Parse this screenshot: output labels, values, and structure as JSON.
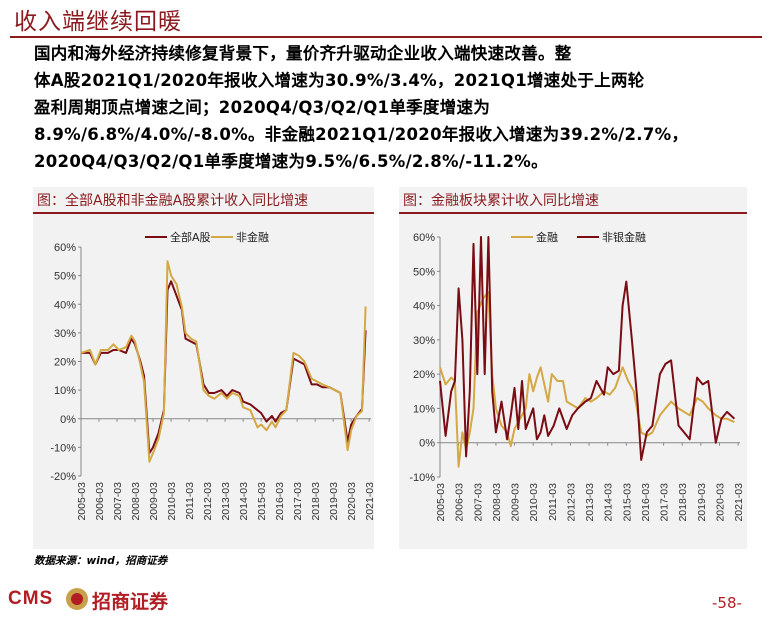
{
  "slide": {
    "title": "收入端继续回暖",
    "paragraph_lines": [
      "国内和海外经济持续修复背景下，量价齐升驱动企业收入端快速改善。整",
      "体A股2021Q1/2020年报收入增速为30.9%/3.4%，2021Q1增速处于上两轮",
      "盈利周期顶点增速之间；2020Q4/Q3/Q2/Q1单季度增速为",
      "8.9%/6.8%/4.0%/-8.0%。非金融2021Q1/2020年报收入增速为39.2%/2.7%，",
      "2020Q4/Q3/Q2/Q1单季度增速为9.5%/6.5%/2.8%/-11.2%。"
    ],
    "source": "数据来源：wind，招商证券",
    "page_number": "-58-",
    "logo": {
      "left": "CMS",
      "right": "招商证券"
    },
    "colors": {
      "accent": "#8b1a1f",
      "series_dark": "#7a0c14",
      "series_gold": "#d4a843",
      "panel_bg": "#f2f2f2"
    }
  },
  "chart_data": [
    {
      "type": "line",
      "title": "图：全部A股和非金融A股累计收入同比增速",
      "legend_position": "top-center",
      "x_tick_labels": [
        "2005-03",
        "2006-03",
        "2007-03",
        "2008-03",
        "2009-03",
        "2010-03",
        "2011-03",
        "2012-03",
        "2013-03",
        "2014-03",
        "2015-03",
        "2016-03",
        "2017-03",
        "2018-03",
        "2019-03",
        "2020-03",
        "2021-03"
      ],
      "y_tick_labels": [
        "-20%",
        "-10%",
        "0%",
        "10%",
        "20%",
        "30%",
        "40%",
        "50%",
        "60%"
      ],
      "ylim": [
        -20,
        60
      ],
      "xlim": [
        2005.2,
        2021.3
      ],
      "grid": false,
      "series": [
        {
          "name": "全部A股",
          "color": "#7a0c14",
          "points": [
            [
              2005.2,
              23
            ],
            [
              2005.7,
              23
            ],
            [
              2006.0,
              19
            ],
            [
              2006.3,
              23
            ],
            [
              2006.7,
              23
            ],
            [
              2007.0,
              24
            ],
            [
              2007.3,
              24
            ],
            [
              2007.7,
              23
            ],
            [
              2008.0,
              28
            ],
            [
              2008.2,
              26
            ],
            [
              2008.5,
              20
            ],
            [
              2008.7,
              15
            ],
            [
              2009.0,
              -12
            ],
            [
              2009.2,
              -10
            ],
            [
              2009.5,
              -5
            ],
            [
              2009.8,
              3
            ],
            [
              2010.0,
              45
            ],
            [
              2010.2,
              48
            ],
            [
              2010.5,
              43
            ],
            [
              2010.8,
              38
            ],
            [
              2011.0,
              28
            ],
            [
              2011.3,
              27
            ],
            [
              2011.6,
              26
            ],
            [
              2012.0,
              12
            ],
            [
              2012.3,
              9
            ],
            [
              2012.6,
              9
            ],
            [
              2013.0,
              10
            ],
            [
              2013.3,
              8
            ],
            [
              2013.6,
              10
            ],
            [
              2014.0,
              9
            ],
            [
              2014.2,
              6
            ],
            [
              2014.6,
              5
            ],
            [
              2015.0,
              3
            ],
            [
              2015.2,
              2
            ],
            [
              2015.5,
              -1
            ],
            [
              2015.8,
              1
            ],
            [
              2016.0,
              -1
            ],
            [
              2016.3,
              2
            ],
            [
              2016.6,
              3
            ],
            [
              2017.0,
              21
            ],
            [
              2017.3,
              20
            ],
            [
              2017.6,
              19
            ],
            [
              2018.0,
              12
            ],
            [
              2018.3,
              12
            ],
            [
              2018.6,
              11
            ],
            [
              2019.0,
              11
            ],
            [
              2019.3,
              10
            ],
            [
              2019.6,
              9
            ],
            [
              2020.0,
              -8
            ],
            [
              2020.2,
              -2
            ],
            [
              2020.5,
              1
            ],
            [
              2020.8,
              3.4
            ],
            [
              2021.0,
              30.9
            ]
          ]
        },
        {
          "name": "非金融",
          "color": "#d4a843",
          "points": [
            [
              2005.2,
              23
            ],
            [
              2005.7,
              24
            ],
            [
              2006.0,
              19
            ],
            [
              2006.3,
              24
            ],
            [
              2006.7,
              24
            ],
            [
              2007.0,
              26
            ],
            [
              2007.3,
              24
            ],
            [
              2007.7,
              25
            ],
            [
              2008.0,
              29
            ],
            [
              2008.2,
              27
            ],
            [
              2008.5,
              19
            ],
            [
              2008.7,
              13
            ],
            [
              2009.0,
              -15
            ],
            [
              2009.2,
              -12
            ],
            [
              2009.5,
              -7
            ],
            [
              2009.8,
              2
            ],
            [
              2010.0,
              55
            ],
            [
              2010.2,
              50
            ],
            [
              2010.5,
              47
            ],
            [
              2010.8,
              39
            ],
            [
              2011.0,
              30
            ],
            [
              2011.3,
              28
            ],
            [
              2011.6,
              27
            ],
            [
              2012.0,
              10
            ],
            [
              2012.3,
              8
            ],
            [
              2012.6,
              7
            ],
            [
              2013.0,
              9
            ],
            [
              2013.3,
              7
            ],
            [
              2013.6,
              9
            ],
            [
              2014.0,
              8
            ],
            [
              2014.2,
              4
            ],
            [
              2014.6,
              3
            ],
            [
              2015.0,
              -3
            ],
            [
              2015.2,
              -2
            ],
            [
              2015.5,
              -4
            ],
            [
              2015.8,
              -1
            ],
            [
              2016.0,
              -3
            ],
            [
              2016.3,
              1
            ],
            [
              2016.6,
              3
            ],
            [
              2017.0,
              23
            ],
            [
              2017.3,
              22
            ],
            [
              2017.6,
              20
            ],
            [
              2018.0,
              14
            ],
            [
              2018.3,
              13
            ],
            [
              2018.6,
              12
            ],
            [
              2019.0,
              11
            ],
            [
              2019.3,
              10
            ],
            [
              2019.6,
              9
            ],
            [
              2020.0,
              -11
            ],
            [
              2020.2,
              -4
            ],
            [
              2020.5,
              1
            ],
            [
              2020.8,
              2.7
            ],
            [
              2021.0,
              39.2
            ]
          ]
        }
      ]
    },
    {
      "type": "line",
      "title": "图：金融板块累计收入同比增速",
      "legend_position": "top-center",
      "x_tick_labels": [
        "2005-03",
        "2006-03",
        "2007-03",
        "2008-03",
        "2009-03",
        "2010-03",
        "2011-03",
        "2012-03",
        "2013-03",
        "2014-03",
        "2015-03",
        "2016-03",
        "2017-03",
        "2018-03",
        "2019-03",
        "2020-03",
        "2021-03"
      ],
      "y_tick_labels": [
        "-10%",
        "0%",
        "10%",
        "20%",
        "30%",
        "40%",
        "50%",
        "60%"
      ],
      "ylim": [
        -10,
        60
      ],
      "xlim": [
        2005.2,
        2021.3
      ],
      "grid": false,
      "series": [
        {
          "name": "金融",
          "color": "#d4a843",
          "points": [
            [
              2005.2,
              22
            ],
            [
              2005.5,
              17
            ],
            [
              2005.8,
              19
            ],
            [
              2006.0,
              18
            ],
            [
              2006.2,
              -7
            ],
            [
              2006.4,
              3
            ],
            [
              2006.6,
              -2
            ],
            [
              2006.8,
              3
            ],
            [
              2007.0,
              10
            ],
            [
              2007.2,
              38
            ],
            [
              2007.5,
              42
            ],
            [
              2007.8,
              44
            ],
            [
              2008.0,
              20
            ],
            [
              2008.2,
              10
            ],
            [
              2008.5,
              5
            ],
            [
              2008.8,
              3
            ],
            [
              2009.0,
              -1
            ],
            [
              2009.2,
              4
            ],
            [
              2009.5,
              7
            ],
            [
              2009.8,
              10
            ],
            [
              2010.0,
              20
            ],
            [
              2010.2,
              15
            ],
            [
              2010.4,
              19
            ],
            [
              2010.6,
              22
            ],
            [
              2010.8,
              17
            ],
            [
              2011.0,
              12
            ],
            [
              2011.2,
              20
            ],
            [
              2011.5,
              18
            ],
            [
              2011.8,
              18
            ],
            [
              2012.0,
              12
            ],
            [
              2012.3,
              11
            ],
            [
              2012.6,
              10
            ],
            [
              2013.0,
              13
            ],
            [
              2013.3,
              12
            ],
            [
              2013.6,
              13
            ],
            [
              2014.0,
              15
            ],
            [
              2014.3,
              14
            ],
            [
              2014.6,
              16
            ],
            [
              2015.0,
              22
            ],
            [
              2015.3,
              18
            ],
            [
              2015.6,
              15
            ],
            [
              2016.0,
              3
            ],
            [
              2016.3,
              2
            ],
            [
              2016.6,
              3
            ],
            [
              2017.0,
              8
            ],
            [
              2017.3,
              10
            ],
            [
              2017.6,
              12
            ],
            [
              2018.0,
              10
            ],
            [
              2018.3,
              9
            ],
            [
              2018.6,
              8
            ],
            [
              2019.0,
              13
            ],
            [
              2019.3,
              12
            ],
            [
              2019.6,
              10
            ],
            [
              2020.0,
              8
            ],
            [
              2020.3,
              7
            ],
            [
              2020.6,
              7
            ],
            [
              2021.0,
              6
            ]
          ]
        },
        {
          "name": "非银金融",
          "color": "#7a0c14",
          "points": [
            [
              2005.2,
              18
            ],
            [
              2005.5,
              2
            ],
            [
              2005.8,
              15
            ],
            [
              2006.0,
              18
            ],
            [
              2006.2,
              45
            ],
            [
              2006.4,
              30
            ],
            [
              2006.6,
              -4
            ],
            [
              2006.8,
              15
            ],
            [
              2007.0,
              58
            ],
            [
              2007.2,
              20
            ],
            [
              2007.4,
              61
            ],
            [
              2007.6,
              20
            ],
            [
              2007.8,
              61
            ],
            [
              2008.0,
              15
            ],
            [
              2008.2,
              3
            ],
            [
              2008.5,
              12
            ],
            [
              2008.8,
              1
            ],
            [
              2009.0,
              8
            ],
            [
              2009.2,
              16
            ],
            [
              2009.4,
              4
            ],
            [
              2009.6,
              18
            ],
            [
              2009.8,
              4
            ],
            [
              2010.0,
              7
            ],
            [
              2010.2,
              10
            ],
            [
              2010.4,
              1
            ],
            [
              2010.6,
              3
            ],
            [
              2010.8,
              8
            ],
            [
              2011.0,
              2
            ],
            [
              2011.3,
              5
            ],
            [
              2011.6,
              10
            ],
            [
              2012.0,
              4
            ],
            [
              2012.3,
              8
            ],
            [
              2012.6,
              10
            ],
            [
              2013.0,
              12
            ],
            [
              2013.3,
              13
            ],
            [
              2013.6,
              18
            ],
            [
              2014.0,
              14
            ],
            [
              2014.2,
              22
            ],
            [
              2014.5,
              20
            ],
            [
              2014.8,
              21
            ],
            [
              2015.0,
              40
            ],
            [
              2015.2,
              47
            ],
            [
              2015.5,
              30
            ],
            [
              2015.8,
              12
            ],
            [
              2016.0,
              -5
            ],
            [
              2016.3,
              3
            ],
            [
              2016.6,
              5
            ],
            [
              2017.0,
              20
            ],
            [
              2017.3,
              23
            ],
            [
              2017.6,
              24
            ],
            [
              2018.0,
              5
            ],
            [
              2018.3,
              3
            ],
            [
              2018.6,
              1
            ],
            [
              2019.0,
              19
            ],
            [
              2019.3,
              17
            ],
            [
              2019.6,
              18
            ],
            [
              2020.0,
              0
            ],
            [
              2020.3,
              7
            ],
            [
              2020.6,
              9
            ],
            [
              2021.0,
              7
            ]
          ]
        }
      ]
    }
  ]
}
